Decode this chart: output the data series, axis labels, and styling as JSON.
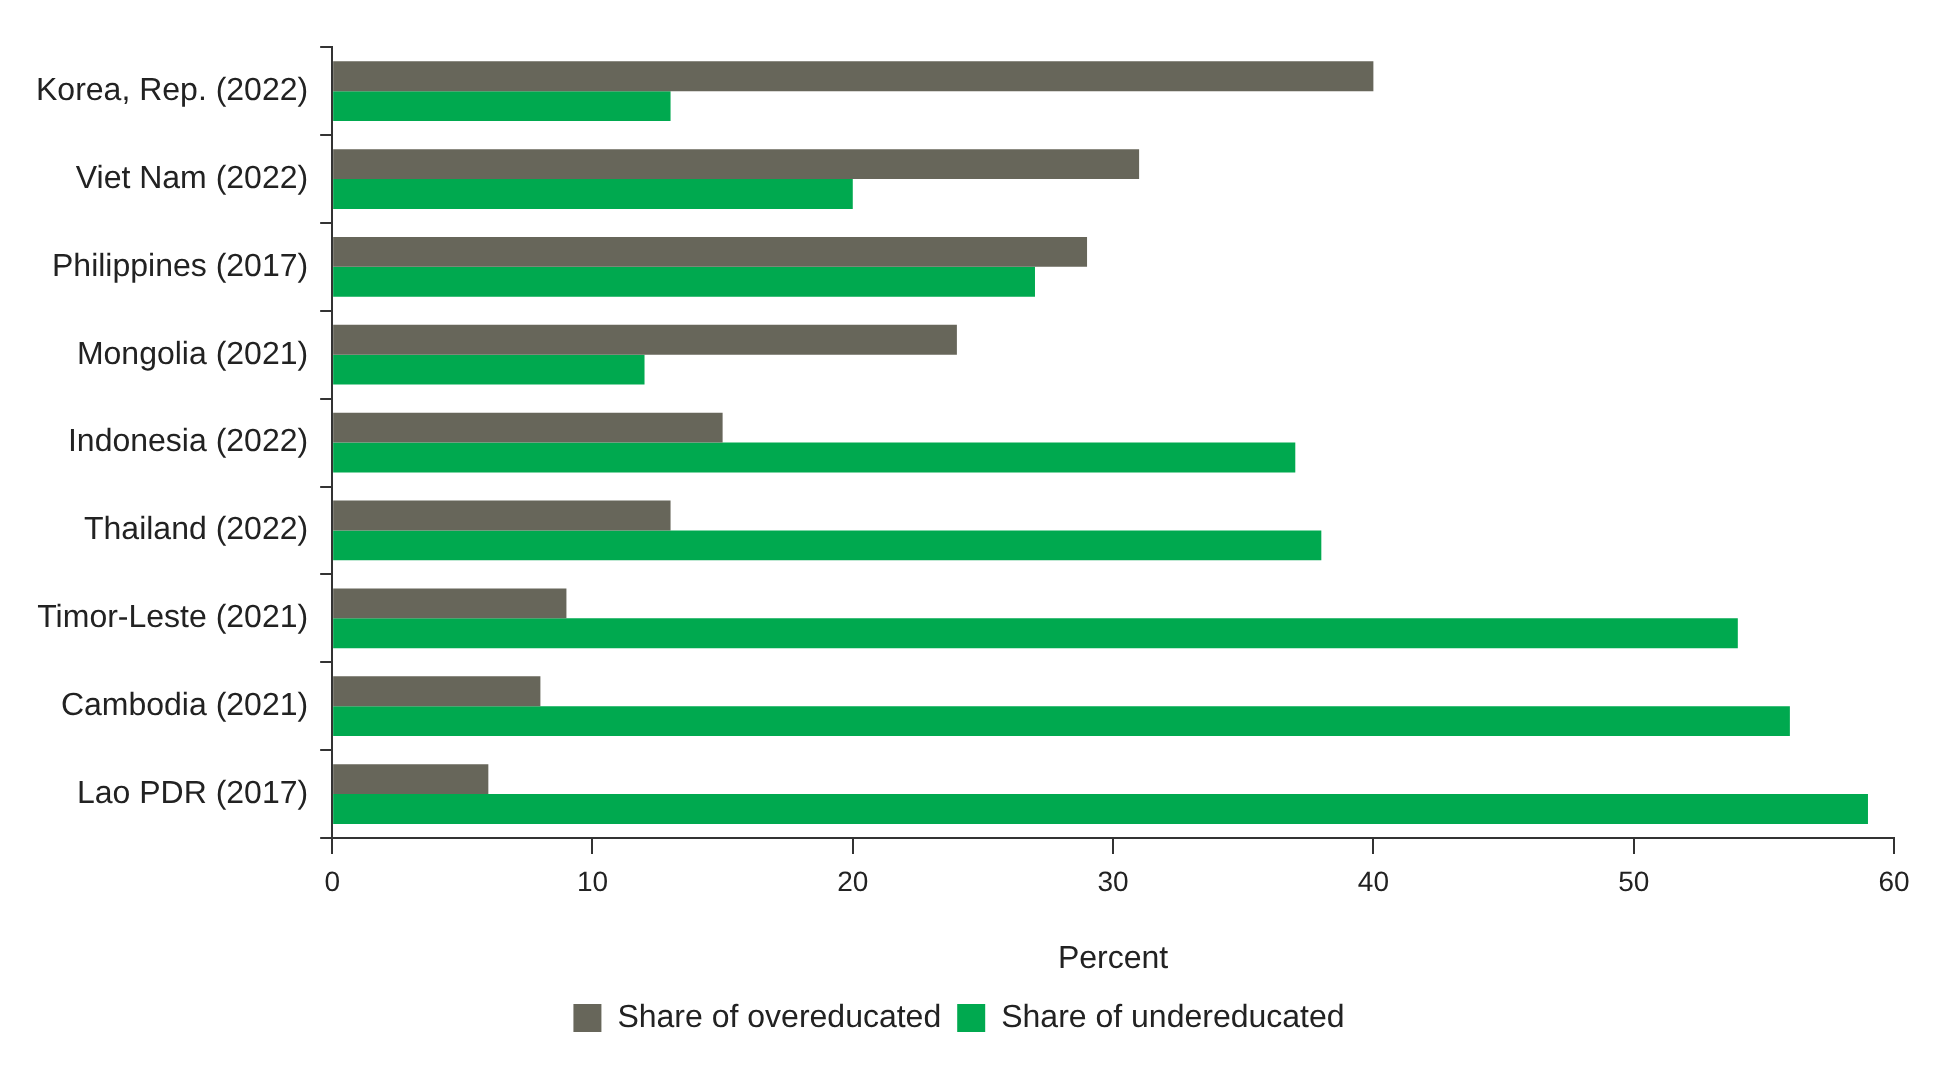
{
  "chart_data": {
    "type": "bar",
    "orientation": "horizontal",
    "xlabel": "Percent",
    "categories": [
      "Korea, Rep. (2022)",
      "Viet Nam (2022)",
      "Philippines (2017)",
      "Mongolia (2021)",
      "Indonesia (2022)",
      "Thailand (2022)",
      "Timor-Leste (2021)",
      "Cambodia (2021)",
      "Lao PDR (2017)"
    ],
    "series": [
      {
        "name": "Share of overeducated",
        "color": "#67665a",
        "values": [
          40,
          31,
          29,
          24,
          15,
          13,
          9,
          8,
          6
        ]
      },
      {
        "name": "Share of undereducated",
        "color": "#00a94f",
        "values": [
          13,
          20,
          27,
          12,
          37,
          38,
          54,
          56,
          59
        ]
      }
    ],
    "xlim": [
      0,
      60
    ],
    "xticks": [
      0,
      10,
      20,
      30,
      40,
      50,
      60
    ],
    "grid": false,
    "legend": "bottom"
  }
}
